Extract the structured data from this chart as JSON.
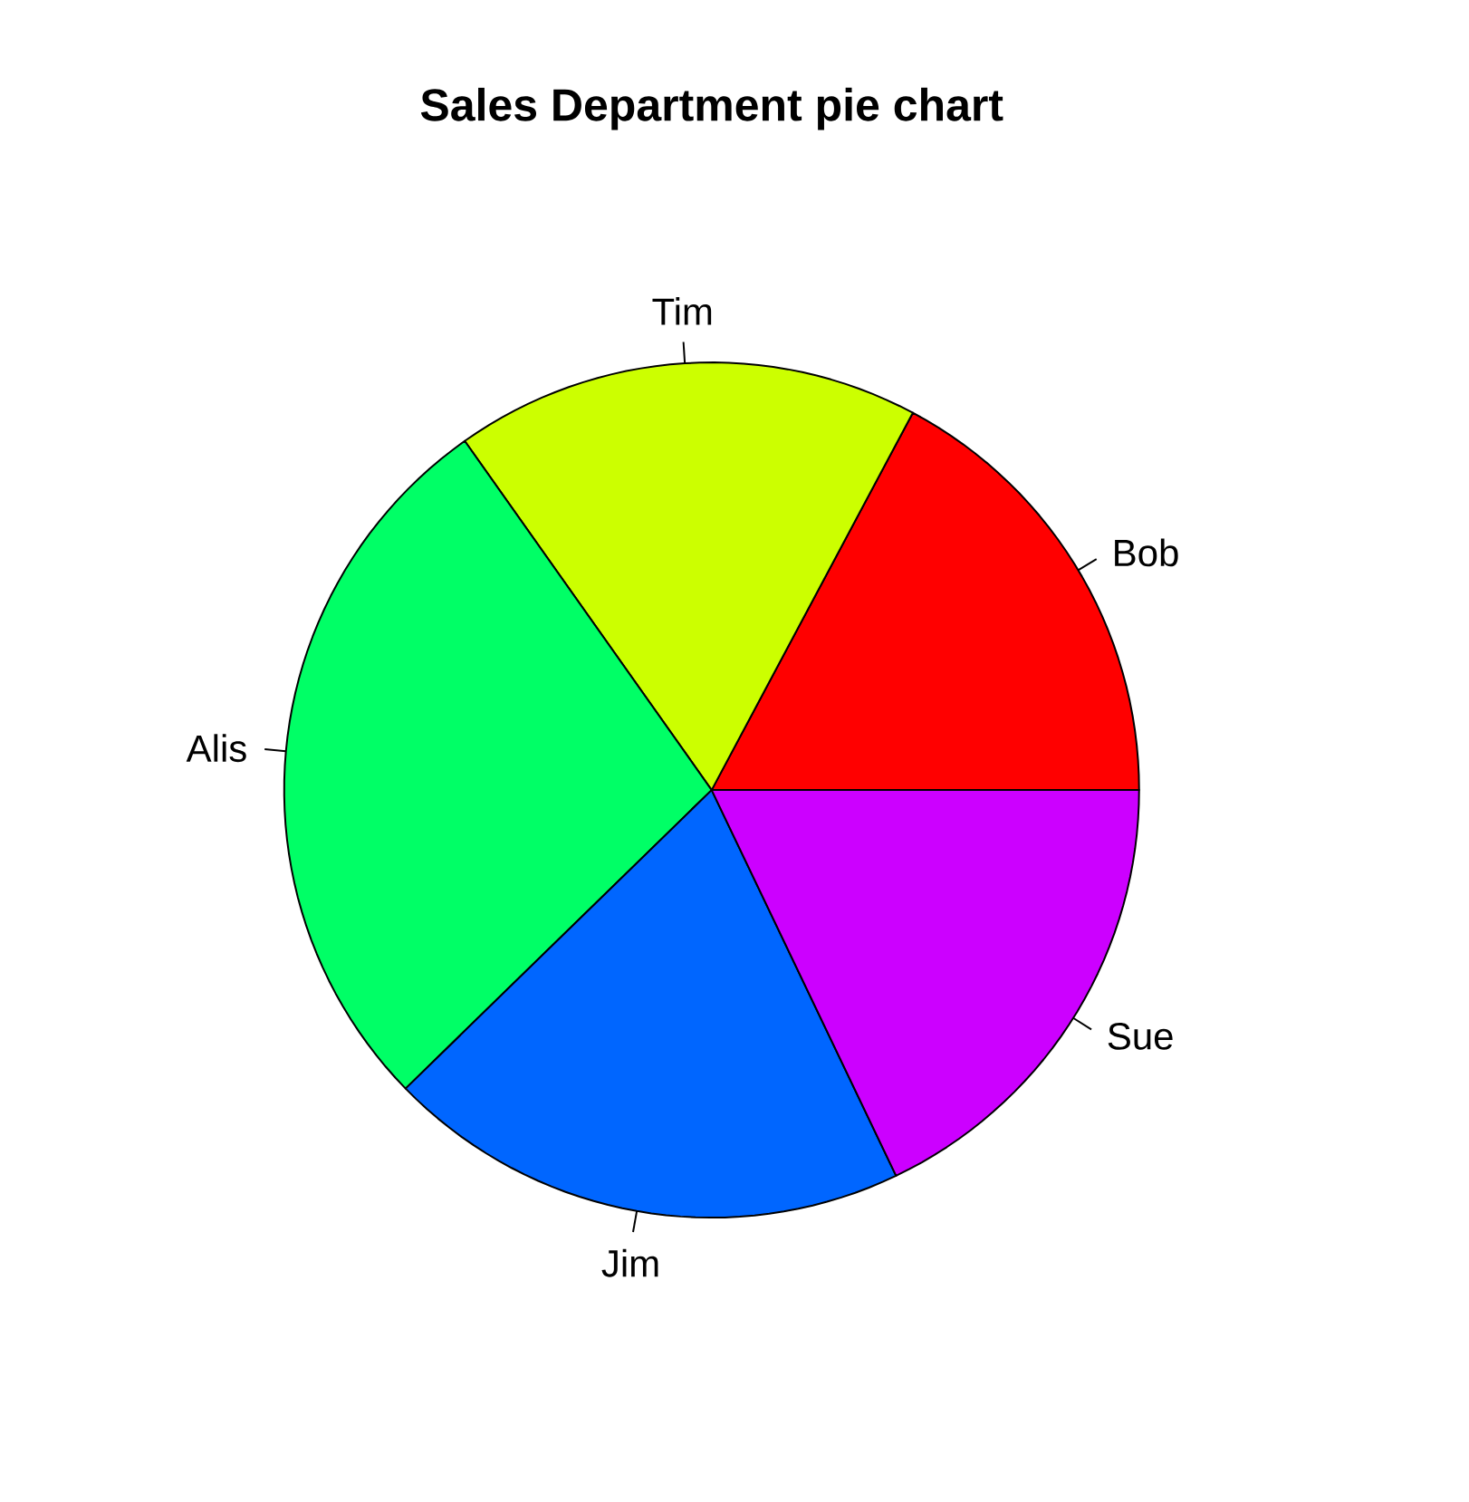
{
  "chart_data": {
    "type": "pie",
    "title": "Sales Department pie chart",
    "categories": [
      "Bob",
      "Tim",
      "Alis",
      "Jim",
      "Sue"
    ],
    "values": [
      17.2,
      17.6,
      27.5,
      19.8,
      17.9
    ],
    "colors": [
      "#ff0000",
      "#ccff00",
      "#00ff66",
      "#0066ff",
      "#cc00ff"
    ]
  }
}
